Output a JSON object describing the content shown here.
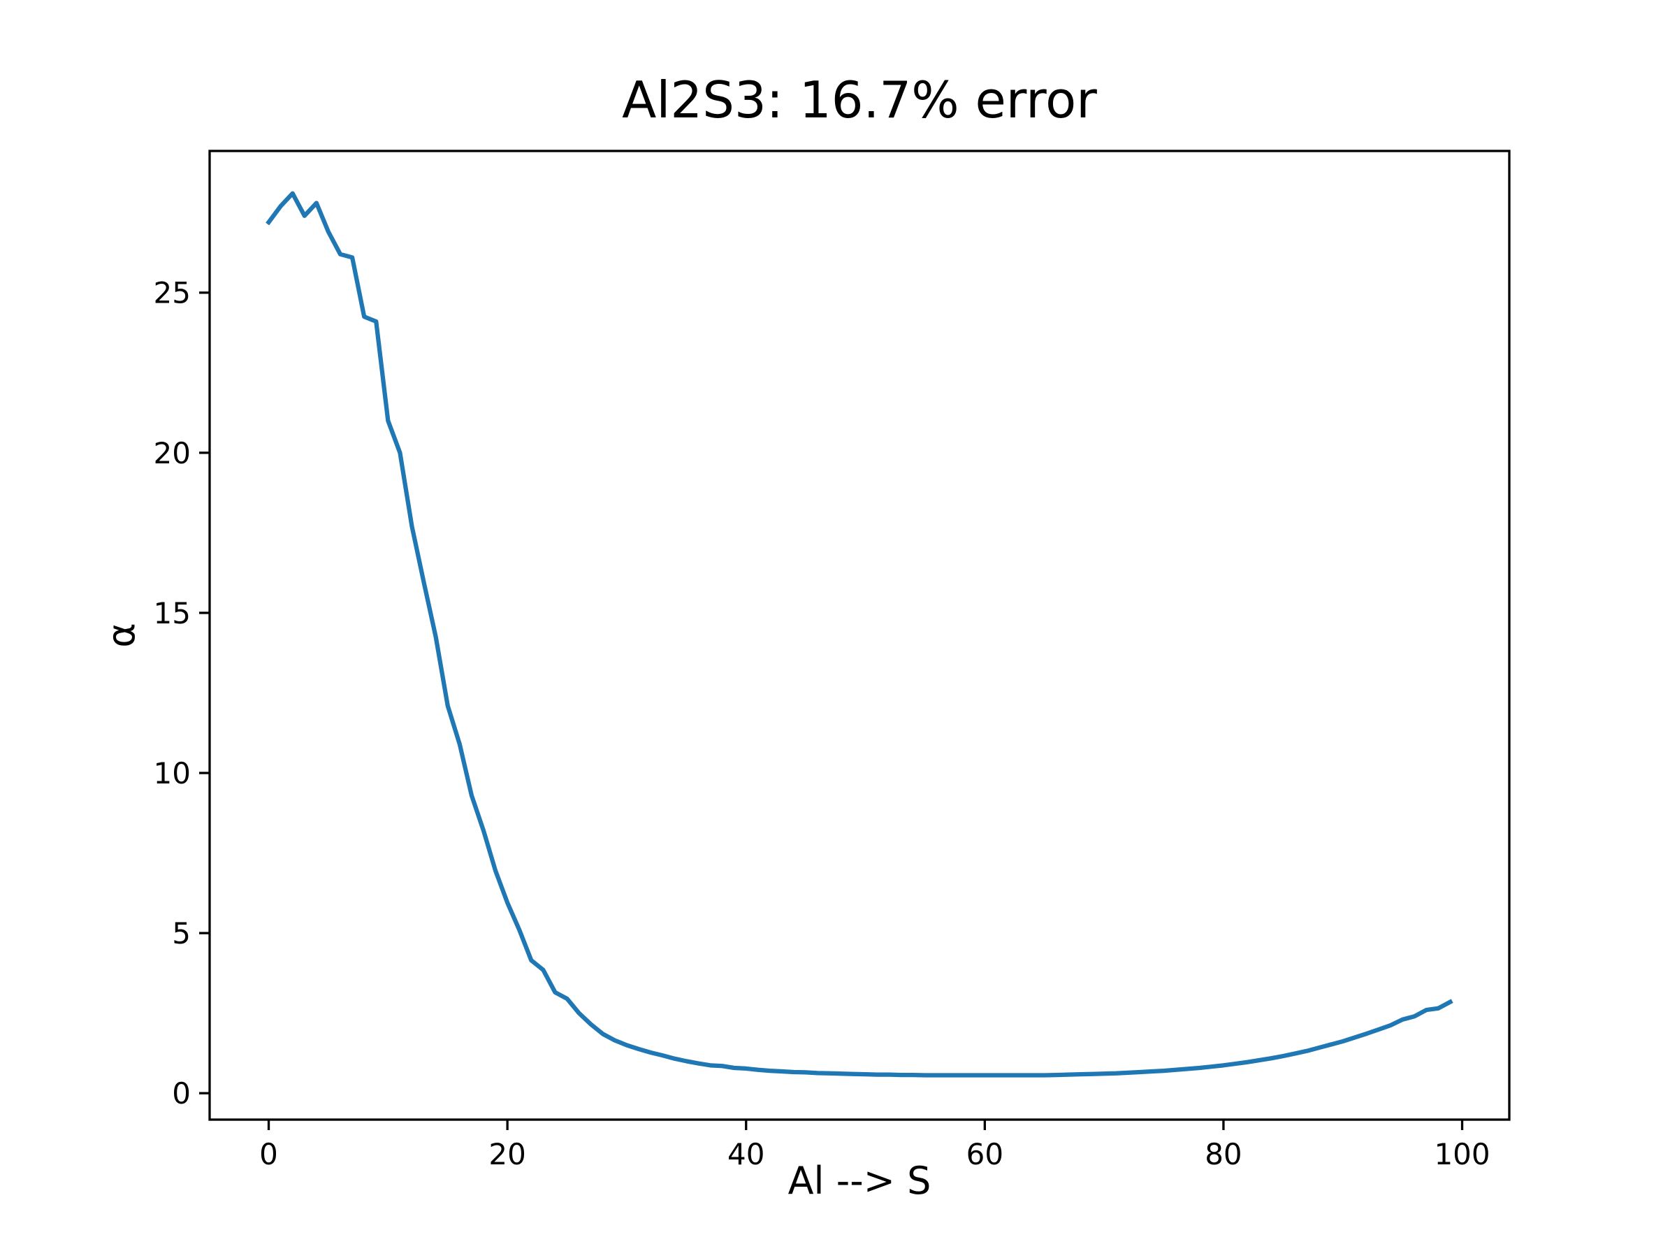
{
  "chart_data": {
    "type": "line",
    "title": "Al2S3: 16.7% error",
    "xlabel": "Al --> S",
    "ylabel": "α",
    "x": [
      0,
      1,
      2,
      3,
      4,
      5,
      6,
      7,
      8,
      9,
      10,
      11,
      12,
      13,
      14,
      15,
      16,
      17,
      18,
      19,
      20,
      21,
      22,
      23,
      24,
      25,
      26,
      27,
      28,
      29,
      30,
      31,
      32,
      33,
      34,
      35,
      36,
      37,
      38,
      39,
      40,
      41,
      42,
      43,
      44,
      45,
      46,
      47,
      48,
      49,
      50,
      51,
      52,
      53,
      54,
      55,
      56,
      57,
      58,
      59,
      60,
      61,
      62,
      63,
      64,
      65,
      66,
      67,
      68,
      69,
      70,
      71,
      72,
      73,
      74,
      75,
      76,
      77,
      78,
      79,
      80,
      81,
      82,
      83,
      84,
      85,
      86,
      87,
      88,
      89,
      90,
      91,
      92,
      93,
      94,
      95,
      96,
      97,
      98,
      99
    ],
    "series": [
      {
        "color": "#1f77b4",
        "values": [
          27.2,
          27.7,
          28.1,
          27.4,
          27.8,
          26.9,
          26.2,
          26.1,
          24.25,
          24.1,
          21.0,
          20.0,
          17.7,
          15.95,
          14.25,
          12.1,
          10.9,
          9.3,
          8.2,
          6.95,
          5.95,
          5.1,
          4.15,
          3.85,
          3.15,
          2.95,
          2.5,
          2.15,
          1.85,
          1.65,
          1.5,
          1.38,
          1.27,
          1.18,
          1.08,
          1.0,
          0.93,
          0.87,
          0.85,
          0.79,
          0.77,
          0.73,
          0.7,
          0.68,
          0.66,
          0.65,
          0.63,
          0.62,
          0.61,
          0.6,
          0.59,
          0.58,
          0.58,
          0.57,
          0.57,
          0.56,
          0.56,
          0.56,
          0.56,
          0.56,
          0.56,
          0.56,
          0.56,
          0.56,
          0.56,
          0.56,
          0.57,
          0.58,
          0.59,
          0.6,
          0.61,
          0.62,
          0.64,
          0.66,
          0.68,
          0.7,
          0.73,
          0.76,
          0.79,
          0.83,
          0.87,
          0.92,
          0.97,
          1.03,
          1.09,
          1.16,
          1.24,
          1.32,
          1.42,
          1.52,
          1.62,
          1.74,
          1.86,
          1.99,
          2.12,
          2.3,
          2.4,
          2.6,
          2.65,
          2.85
        ]
      }
    ],
    "xlim": [
      -4.95,
      103.95
    ],
    "xticks": [
      0,
      20,
      40,
      60,
      80,
      100
    ],
    "ylim": [
      -0.825,
      29.425
    ],
    "yticks": [
      0,
      5,
      10,
      15,
      20,
      25
    ],
    "grid": false
  }
}
